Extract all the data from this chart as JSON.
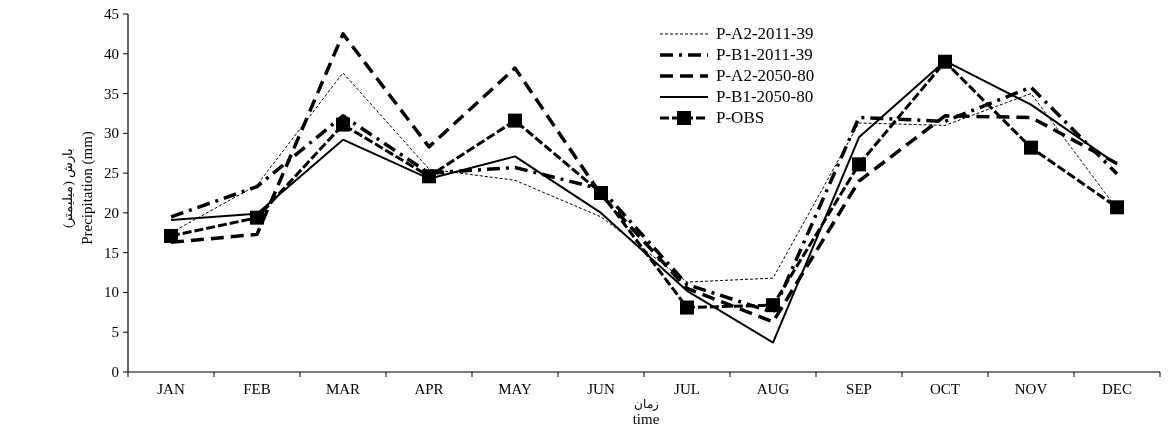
{
  "chart_data": {
    "type": "line",
    "xlabel": "time",
    "ylabel": "Precipitation (mm)",
    "annotations": [
      "بارش (میلیمتر)",
      "زمان"
    ],
    "categories": [
      "JAN",
      "FEB",
      "MAR",
      "APR",
      "MAY",
      "JUN",
      "JUL",
      "AUG",
      "SEP",
      "OCT",
      "NOV",
      "DEC"
    ],
    "ylim": [
      0,
      45
    ],
    "yticks": [
      0,
      5,
      10,
      15,
      20,
      25,
      30,
      35,
      40,
      45
    ],
    "legend": "top",
    "series": [
      {
        "name": "P-A2-2011-39",
        "color": "#000000",
        "line_style": "dotted",
        "values": [
          17.5,
          23.5,
          37.6,
          25.5,
          24.1,
          19.5,
          11.3,
          11.8,
          31.3,
          31.0,
          35.0,
          20.5
        ]
      },
      {
        "name": "P-B1-2011-39",
        "color": "#000000",
        "line_style": "dashdot",
        "values": [
          19.5,
          23.3,
          32.2,
          25.0,
          25.7,
          23.0,
          11.0,
          7.5,
          32.0,
          31.5,
          35.8,
          24.9
        ]
      },
      {
        "name": "P-A2-2050-80",
        "color": "#000000",
        "line_style": "dashed",
        "values": [
          16.3,
          17.3,
          42.5,
          28.3,
          38.2,
          22.3,
          10.5,
          6.3,
          24.0,
          32.2,
          32.0,
          26.2
        ]
      },
      {
        "name": "P-B1-2050-80",
        "color": "#000000",
        "line_style": "solid",
        "values": [
          19.1,
          19.9,
          29.2,
          24.3,
          27.1,
          20.0,
          10.2,
          3.7,
          29.5,
          39.1,
          33.6,
          26.1
        ]
      },
      {
        "name": "P-OBS",
        "color": "#000000",
        "line_style": "double",
        "marker": "square",
        "values": [
          17.1,
          19.4,
          31.1,
          24.6,
          31.6,
          22.5,
          8.1,
          8.4,
          26.1,
          39.0,
          28.2,
          20.7
        ]
      }
    ]
  }
}
